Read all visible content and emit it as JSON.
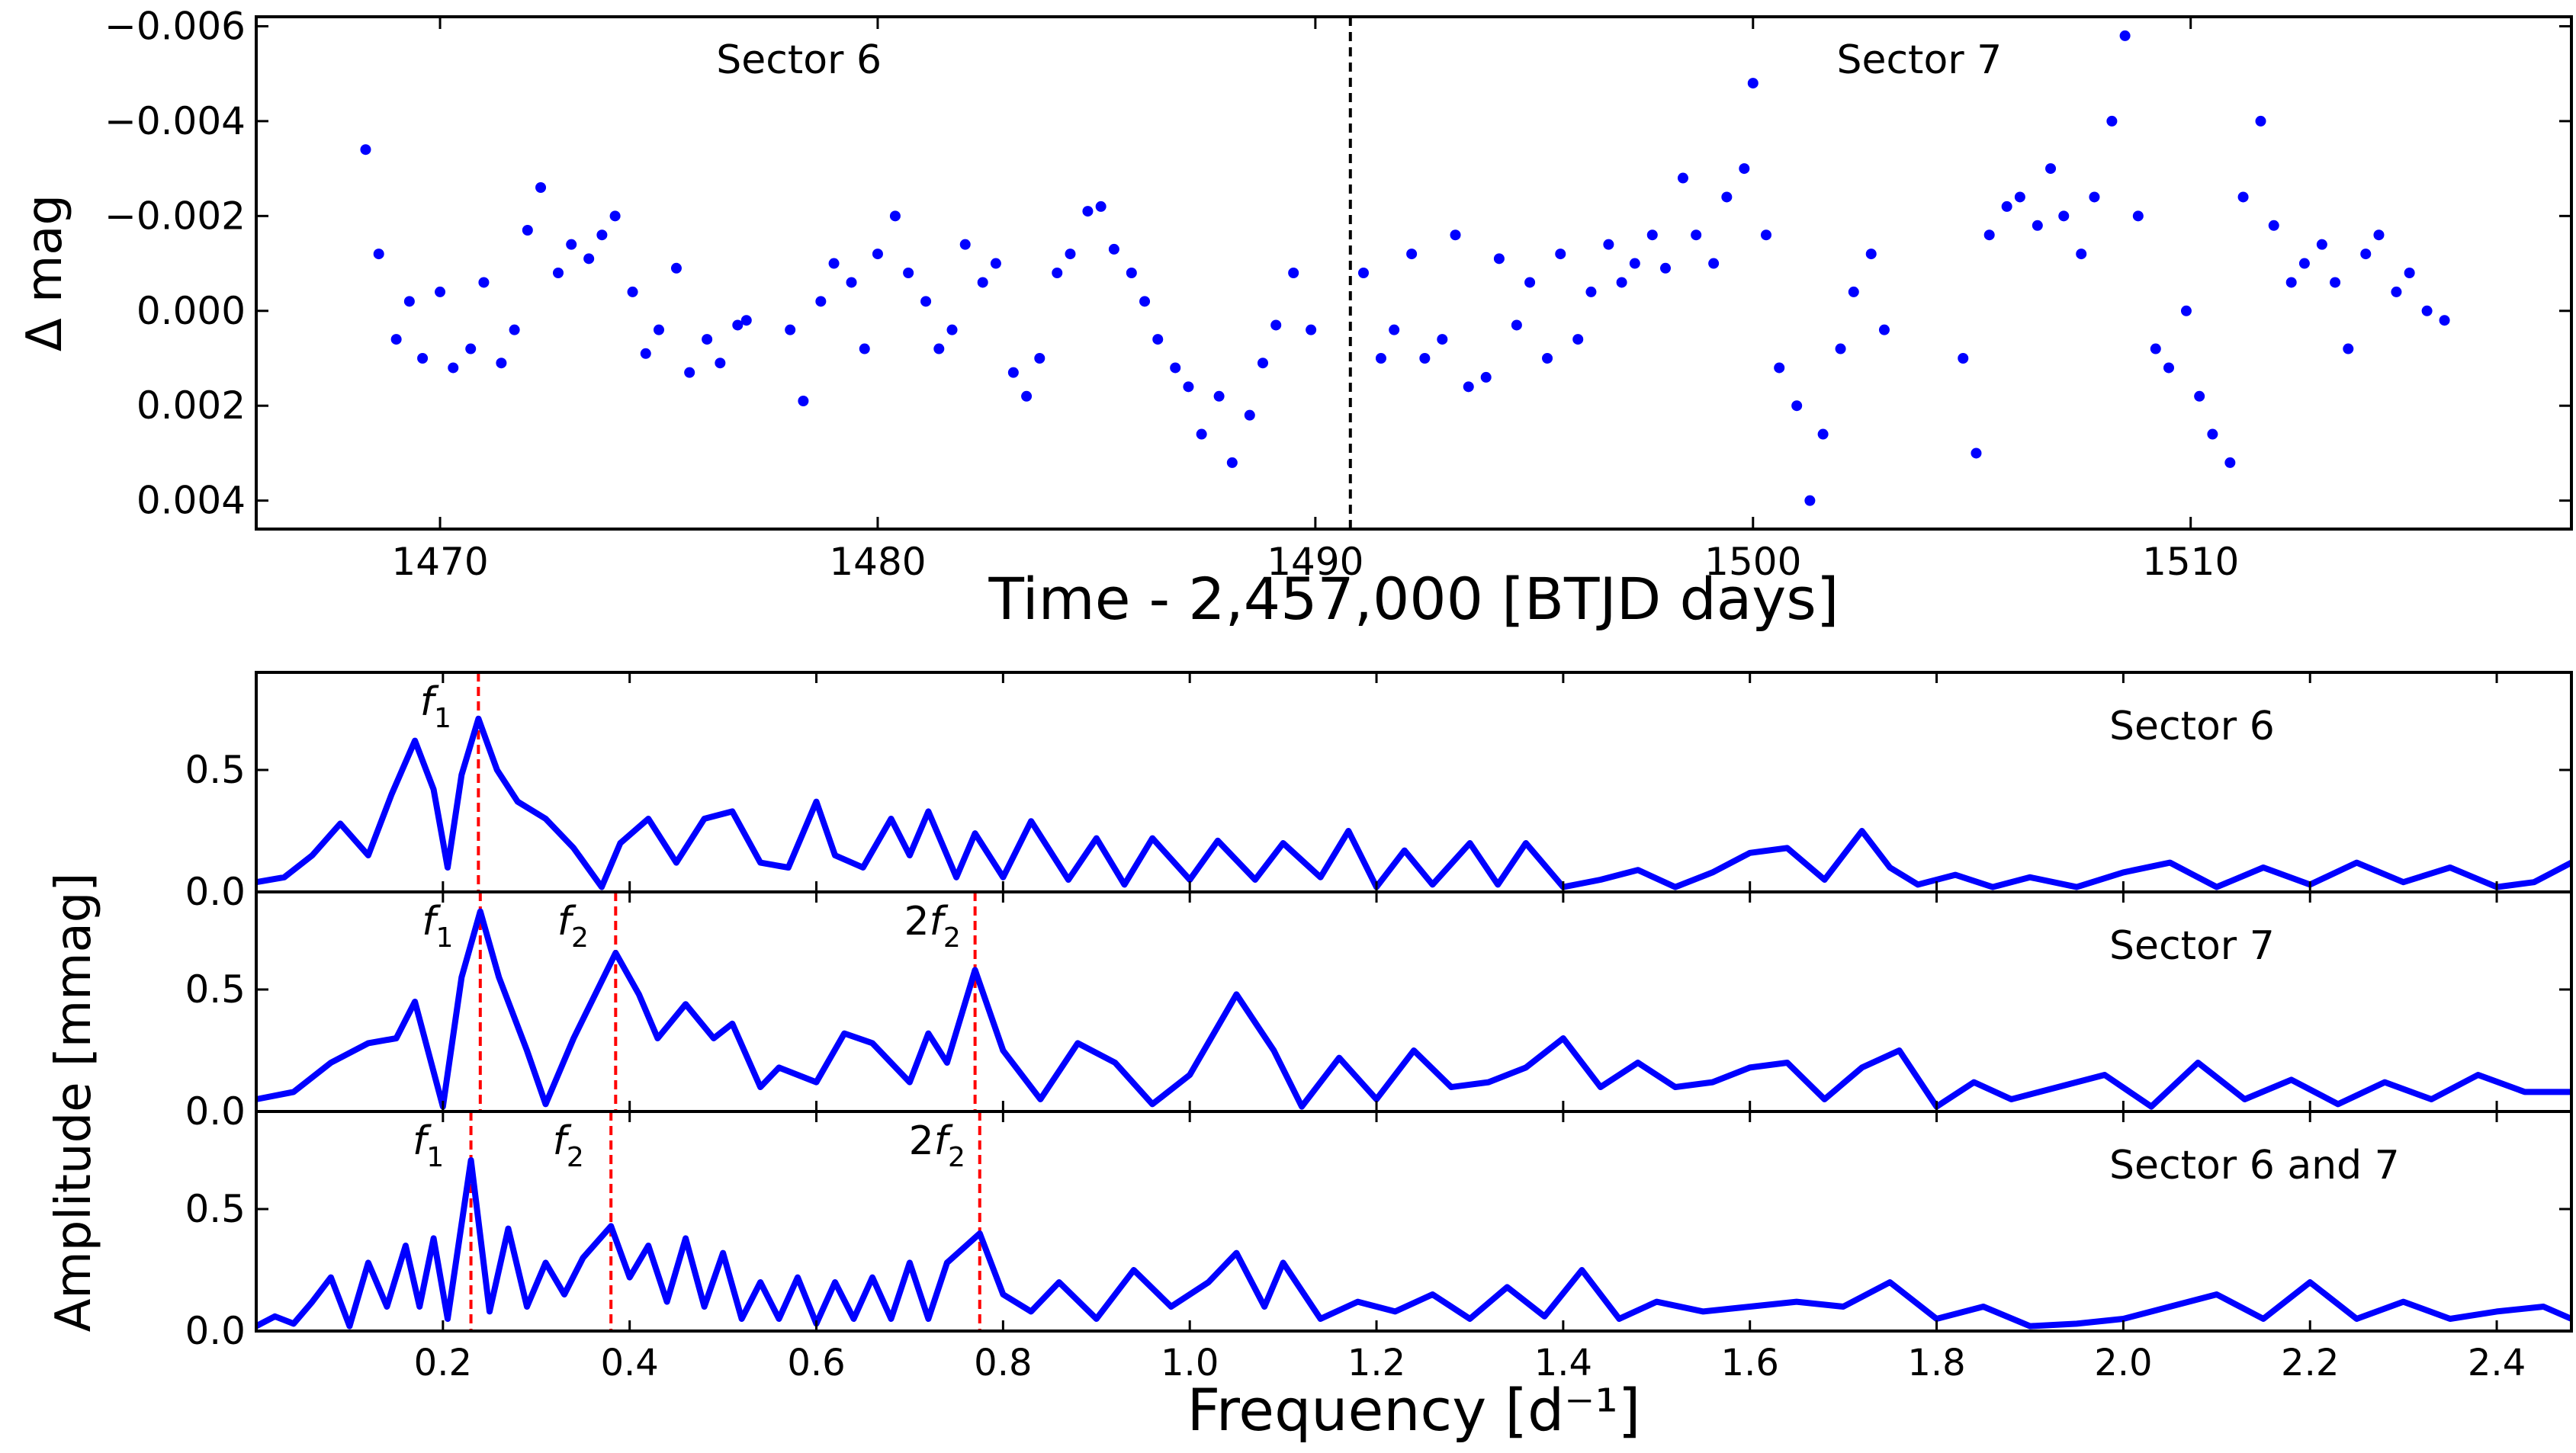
{
  "chart_data": [
    {
      "type": "scatter",
      "panel": "light-curve",
      "xlabel": "Time - 2,457,000 [BTJD days]",
      "ylabel": "Δ mag",
      "xlim": [
        1465.8,
        1518.7
      ],
      "ylim": [
        0.0046,
        -0.0062
      ],
      "y_inverted": true,
      "xticks": [
        1470,
        1480,
        1490,
        1500,
        1510
      ],
      "yticks": [
        -0.006,
        -0.004,
        -0.002,
        0.0,
        0.002,
        0.004
      ],
      "ytick_labels": [
        "−0.006",
        "−0.004",
        "−0.002",
        "0.000",
        "0.002",
        "0.004"
      ],
      "sector_divider_x": 1490.8,
      "annotations": [
        {
          "text": "Sector 6",
          "x": 1478.2,
          "y": -0.0053
        },
        {
          "text": "Sector 7",
          "x": 1503.8,
          "y": -0.0053
        }
      ],
      "series": [
        {
          "color": "#0000ff",
          "x": [
            1468.3,
            1468.6,
            1469.0,
            1469.3,
            1469.6,
            1470.0,
            1470.3,
            1470.7,
            1471.0,
            1471.4,
            1471.7,
            1472.0,
            1472.3,
            1472.7,
            1473.0,
            1473.4,
            1473.7,
            1474.0,
            1474.4,
            1474.7,
            1475.0,
            1475.4,
            1475.7,
            1476.1,
            1476.4,
            1476.8,
            1477.0,
            1478.0,
            1478.3,
            1478.7,
            1479.0,
            1479.4,
            1479.7,
            1480.0,
            1480.4,
            1480.7,
            1481.1,
            1481.4,
            1481.7,
            1482.0,
            1482.4,
            1482.7,
            1483.1,
            1483.4,
            1483.7,
            1484.1,
            1484.4,
            1484.8,
            1485.1,
            1485.4,
            1485.8,
            1486.1,
            1486.4,
            1486.8,
            1487.1,
            1487.4,
            1487.8,
            1488.1,
            1488.5,
            1488.8,
            1489.1,
            1489.5,
            1489.9,
            1491.1,
            1491.5,
            1491.8,
            1492.2,
            1492.5,
            1492.9,
            1493.2,
            1493.5,
            1493.9,
            1494.2,
            1494.6,
            1494.9,
            1495.3,
            1495.6,
            1496.0,
            1496.3,
            1496.7,
            1497.0,
            1497.3,
            1497.7,
            1498.0,
            1498.4,
            1498.7,
            1499.1,
            1499.4,
            1499.8,
            1500.0,
            1500.3,
            1500.6,
            1501.0,
            1501.3,
            1501.6,
            1502.0,
            1502.3,
            1502.7,
            1503.0,
            1504.8,
            1505.1,
            1505.4,
            1505.8,
            1506.1,
            1506.5,
            1506.8,
            1507.1,
            1507.5,
            1507.8,
            1508.2,
            1508.5,
            1508.8,
            1509.2,
            1509.5,
            1509.9,
            1510.2,
            1510.5,
            1510.9,
            1511.2,
            1511.6,
            1511.9,
            1512.3,
            1512.6,
            1513.0,
            1513.3,
            1513.6,
            1514.0,
            1514.3,
            1514.7,
            1515.0,
            1515.4,
            1515.8
          ],
          "y": [
            -0.0034,
            -0.0012,
            0.0006,
            -0.0002,
            0.001,
            -0.0004,
            0.0012,
            0.0008,
            -0.0006,
            0.0011,
            0.0004,
            -0.0017,
            -0.0026,
            -0.0008,
            -0.0014,
            -0.0011,
            -0.0016,
            -0.002,
            -0.0004,
            0.0009,
            0.0004,
            -0.0009,
            0.0013,
            0.0006,
            0.0011,
            0.0003,
            0.0002,
            0.0004,
            0.0019,
            -0.0002,
            -0.001,
            -0.0006,
            0.0008,
            -0.0012,
            -0.002,
            -0.0008,
            -0.0002,
            0.0008,
            0.0004,
            -0.0014,
            -0.0006,
            -0.001,
            0.0013,
            0.0018,
            0.001,
            -0.0008,
            -0.0012,
            -0.0021,
            -0.0022,
            -0.0013,
            -0.0008,
            -0.0002,
            0.0006,
            0.0012,
            0.0016,
            0.0026,
            0.0018,
            0.0032,
            0.0022,
            0.0011,
            0.0003,
            -0.0008,
            0.0004,
            -0.0008,
            0.001,
            0.0004,
            -0.0012,
            0.001,
            0.0006,
            -0.0016,
            0.0016,
            0.0014,
            -0.0011,
            0.0003,
            -0.0006,
            0.001,
            -0.0012,
            0.0006,
            -0.0004,
            -0.0014,
            -0.0006,
            -0.001,
            -0.0016,
            -0.0009,
            -0.0028,
            -0.0016,
            -0.001,
            -0.0024,
            -0.003,
            -0.0048,
            -0.0016,
            0.0012,
            0.002,
            0.004,
            0.0026,
            0.0008,
            -0.0004,
            -0.0012,
            0.0004,
            0.001,
            0.003,
            -0.0016,
            -0.0022,
            -0.0024,
            -0.0018,
            -0.003,
            -0.002,
            -0.0012,
            -0.0024,
            -0.004,
            -0.0058,
            -0.002,
            0.0008,
            0.0012,
            0.0,
            0.0018,
            0.0026,
            0.0032,
            -0.0024,
            -0.004,
            -0.0018,
            -0.0006,
            -0.001,
            -0.0014,
            -0.0006,
            0.0008,
            -0.0012,
            -0.0016,
            -0.0004,
            -0.0008,
            0.0,
            0.0002
          ]
        }
      ]
    },
    {
      "type": "line",
      "panel": "periodogram-sector-6",
      "ylabel": "Amplitude [mmag]",
      "xlabel": "Frequency [d⁻¹]",
      "xlim": [
        0.0,
        2.48
      ],
      "ylim": [
        0.0,
        0.9
      ],
      "xticks": [
        0.2,
        0.4,
        0.6,
        0.8,
        1.0,
        1.2,
        1.4,
        1.6,
        1.8,
        2.0,
        2.2,
        2.4
      ],
      "yticks": [
        0.0,
        0.5
      ],
      "panel_label": "Sector 6",
      "marked_frequencies": [
        {
          "label": "f",
          "subscript": "1",
          "x": 0.238
        }
      ],
      "series": [
        {
          "color": "#0000ff",
          "x": [
            0.0,
            0.03,
            0.06,
            0.09,
            0.12,
            0.145,
            0.17,
            0.19,
            0.205,
            0.22,
            0.238,
            0.258,
            0.28,
            0.31,
            0.34,
            0.37,
            0.39,
            0.42,
            0.45,
            0.48,
            0.51,
            0.54,
            0.57,
            0.6,
            0.62,
            0.65,
            0.68,
            0.7,
            0.72,
            0.75,
            0.77,
            0.8,
            0.83,
            0.87,
            0.9,
            0.93,
            0.96,
            1.0,
            1.03,
            1.07,
            1.1,
            1.14,
            1.17,
            1.2,
            1.23,
            1.26,
            1.3,
            1.33,
            1.36,
            1.4,
            1.44,
            1.48,
            1.52,
            1.56,
            1.6,
            1.64,
            1.68,
            1.72,
            1.75,
            1.78,
            1.82,
            1.86,
            1.9,
            1.95,
            2.0,
            2.05,
            2.1,
            2.15,
            2.2,
            2.25,
            2.3,
            2.35,
            2.4,
            2.44,
            2.48
          ],
          "y": [
            0.04,
            0.06,
            0.15,
            0.28,
            0.15,
            0.4,
            0.62,
            0.42,
            0.1,
            0.48,
            0.71,
            0.5,
            0.37,
            0.3,
            0.18,
            0.02,
            0.2,
            0.3,
            0.12,
            0.3,
            0.33,
            0.12,
            0.1,
            0.37,
            0.15,
            0.1,
            0.3,
            0.15,
            0.33,
            0.06,
            0.24,
            0.06,
            0.29,
            0.05,
            0.22,
            0.03,
            0.22,
            0.05,
            0.21,
            0.05,
            0.2,
            0.06,
            0.25,
            0.02,
            0.17,
            0.03,
            0.2,
            0.03,
            0.2,
            0.02,
            0.05,
            0.09,
            0.02,
            0.08,
            0.16,
            0.18,
            0.05,
            0.25,
            0.1,
            0.03,
            0.07,
            0.02,
            0.06,
            0.02,
            0.08,
            0.12,
            0.02,
            0.1,
            0.03,
            0.12,
            0.04,
            0.1,
            0.02,
            0.04,
            0.12
          ]
        }
      ]
    },
    {
      "type": "line",
      "panel": "periodogram-sector-7",
      "xlim": [
        0.0,
        2.48
      ],
      "ylim": [
        0.0,
        0.9
      ],
      "yticks": [
        0.0,
        0.5
      ],
      "panel_label": "Sector 7",
      "marked_frequencies": [
        {
          "label": "f",
          "subscript": "1",
          "x": 0.24
        },
        {
          "label": "f",
          "subscript": "2",
          "x": 0.385
        },
        {
          "label": "2f",
          "subscript": "2",
          "x": 0.77
        }
      ],
      "series": [
        {
          "color": "#0000ff",
          "x": [
            0.0,
            0.04,
            0.08,
            0.12,
            0.15,
            0.17,
            0.2,
            0.22,
            0.24,
            0.26,
            0.29,
            0.31,
            0.34,
            0.385,
            0.41,
            0.43,
            0.46,
            0.49,
            0.51,
            0.54,
            0.56,
            0.6,
            0.63,
            0.66,
            0.7,
            0.72,
            0.74,
            0.77,
            0.8,
            0.84,
            0.88,
            0.92,
            0.96,
            1.0,
            1.05,
            1.09,
            1.12,
            1.16,
            1.2,
            1.24,
            1.28,
            1.32,
            1.36,
            1.4,
            1.44,
            1.48,
            1.52,
            1.56,
            1.6,
            1.64,
            1.68,
            1.72,
            1.76,
            1.8,
            1.84,
            1.88,
            1.93,
            1.98,
            2.03,
            2.08,
            2.13,
            2.18,
            2.23,
            2.28,
            2.33,
            2.38,
            2.43,
            2.48
          ],
          "y": [
            0.05,
            0.08,
            0.2,
            0.28,
            0.3,
            0.45,
            0.02,
            0.55,
            0.82,
            0.55,
            0.25,
            0.03,
            0.3,
            0.65,
            0.48,
            0.3,
            0.44,
            0.3,
            0.36,
            0.1,
            0.18,
            0.12,
            0.32,
            0.28,
            0.12,
            0.32,
            0.2,
            0.58,
            0.25,
            0.05,
            0.28,
            0.2,
            0.03,
            0.15,
            0.48,
            0.25,
            0.02,
            0.22,
            0.05,
            0.25,
            0.1,
            0.12,
            0.18,
            0.3,
            0.1,
            0.2,
            0.1,
            0.12,
            0.18,
            0.2,
            0.05,
            0.18,
            0.25,
            0.02,
            0.12,
            0.05,
            0.1,
            0.15,
            0.02,
            0.2,
            0.05,
            0.13,
            0.03,
            0.12,
            0.05,
            0.15,
            0.08,
            0.08
          ]
        }
      ]
    },
    {
      "type": "line",
      "panel": "periodogram-sector-6-and-7",
      "xlim": [
        0.0,
        2.48
      ],
      "ylim": [
        0.0,
        0.9
      ],
      "yticks": [
        0.0,
        0.5
      ],
      "panel_label": "Sector 6 and 7",
      "marked_frequencies": [
        {
          "label": "f",
          "subscript": "1",
          "x": 0.23
        },
        {
          "label": "f",
          "subscript": "2",
          "x": 0.38
        },
        {
          "label": "2f",
          "subscript": "2",
          "x": 0.775
        }
      ],
      "series": [
        {
          "color": "#0000ff",
          "x": [
            0.0,
            0.02,
            0.04,
            0.06,
            0.08,
            0.1,
            0.12,
            0.14,
            0.16,
            0.175,
            0.19,
            0.205,
            0.23,
            0.25,
            0.27,
            0.29,
            0.31,
            0.33,
            0.35,
            0.38,
            0.4,
            0.42,
            0.44,
            0.46,
            0.48,
            0.5,
            0.52,
            0.54,
            0.56,
            0.58,
            0.6,
            0.62,
            0.64,
            0.66,
            0.68,
            0.7,
            0.72,
            0.74,
            0.775,
            0.8,
            0.83,
            0.86,
            0.9,
            0.94,
            0.98,
            1.02,
            1.05,
            1.08,
            1.1,
            1.14,
            1.18,
            1.22,
            1.26,
            1.3,
            1.34,
            1.38,
            1.42,
            1.46,
            1.5,
            1.55,
            1.6,
            1.65,
            1.7,
            1.75,
            1.8,
            1.85,
            1.9,
            1.95,
            2.0,
            2.05,
            2.1,
            2.15,
            2.2,
            2.25,
            2.3,
            2.35,
            2.4,
            2.45,
            2.48
          ],
          "y": [
            0.02,
            0.06,
            0.03,
            0.12,
            0.22,
            0.02,
            0.28,
            0.1,
            0.35,
            0.1,
            0.38,
            0.05,
            0.7,
            0.08,
            0.42,
            0.1,
            0.28,
            0.15,
            0.3,
            0.43,
            0.22,
            0.35,
            0.12,
            0.38,
            0.1,
            0.32,
            0.05,
            0.2,
            0.05,
            0.22,
            0.03,
            0.2,
            0.05,
            0.22,
            0.05,
            0.28,
            0.05,
            0.28,
            0.4,
            0.15,
            0.08,
            0.2,
            0.05,
            0.25,
            0.1,
            0.2,
            0.32,
            0.1,
            0.28,
            0.05,
            0.12,
            0.08,
            0.15,
            0.05,
            0.18,
            0.06,
            0.25,
            0.05,
            0.12,
            0.08,
            0.1,
            0.12,
            0.1,
            0.2,
            0.05,
            0.1,
            0.02,
            0.03,
            0.05,
            0.1,
            0.15,
            0.05,
            0.2,
            0.05,
            0.12,
            0.05,
            0.08,
            0.1,
            0.05
          ]
        }
      ]
    }
  ]
}
